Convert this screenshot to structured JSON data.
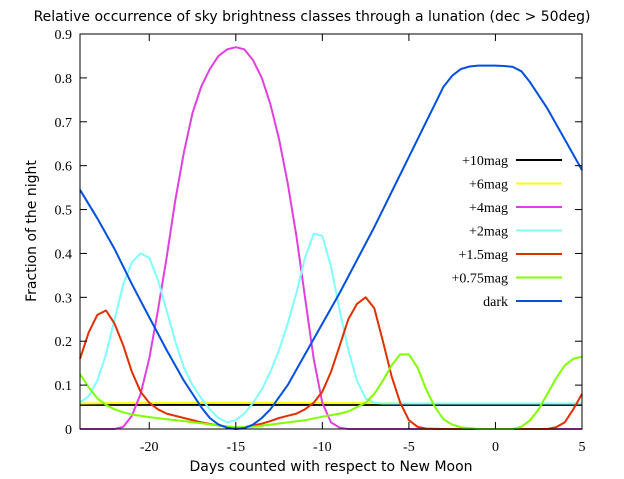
{
  "chart_data": {
    "type": "line",
    "title": "Relative occurrence of sky brightness classes through a lunation (dec > 50deg)",
    "xlabel": "Days counted with respect to New Moon",
    "ylabel": "Fraction of the night",
    "xlim": [
      -24,
      5
    ],
    "ylim": [
      0,
      0.9
    ],
    "xticks": [
      -20,
      -15,
      -10,
      -5,
      0,
      5
    ],
    "yticks": [
      0,
      0.1,
      0.2,
      0.3,
      0.4,
      0.5,
      0.6,
      0.7,
      0.8,
      0.9
    ],
    "grid": false,
    "legend_position": "right",
    "series": [
      {
        "name": "+10mag",
        "color": "#000000",
        "x": [
          -24,
          -20,
          -15,
          -10,
          -5,
          0,
          5
        ],
        "y": [
          0.055,
          0.055,
          0.055,
          0.055,
          0.055,
          0.055,
          0.055
        ]
      },
      {
        "name": "+6mag",
        "color": "#ffff00",
        "x": [
          -24,
          -22,
          -20,
          -17,
          -15,
          -13,
          -10,
          -7,
          -5,
          0,
          5
        ],
        "y": [
          0.058,
          0.059,
          0.059,
          0.06,
          0.06,
          0.06,
          0.059,
          0.059,
          0.058,
          0.058,
          0.058
        ]
      },
      {
        "name": "+4mag",
        "color": "#e040e0",
        "x": [
          -24,
          -22,
          -21.5,
          -21,
          -20.5,
          -20,
          -19.5,
          -19,
          -18.5,
          -18,
          -17.5,
          -17,
          -16.5,
          -16,
          -15.5,
          -15,
          -14.5,
          -14,
          -13.5,
          -13,
          -12.5,
          -12,
          -11.5,
          -11,
          -10.5,
          -10,
          -9.5,
          -9,
          -8.5,
          -8,
          0,
          5
        ],
        "y": [
          0,
          0,
          0.005,
          0.03,
          0.08,
          0.16,
          0.27,
          0.39,
          0.52,
          0.63,
          0.72,
          0.78,
          0.82,
          0.85,
          0.865,
          0.87,
          0.865,
          0.84,
          0.8,
          0.74,
          0.66,
          0.56,
          0.44,
          0.3,
          0.16,
          0.06,
          0.015,
          0.003,
          0,
          0,
          0,
          0
        ]
      },
      {
        "name": "+2mag",
        "color": "#80ffff",
        "x": [
          -24,
          -23.5,
          -23,
          -22.5,
          -22,
          -21.5,
          -21,
          -20.5,
          -20,
          -19.5,
          -19,
          -18.5,
          -18,
          -17.5,
          -17,
          -16.5,
          -16,
          -15.5,
          -15,
          -14.5,
          -14,
          -13.5,
          -13,
          -12.5,
          -12,
          -11.5,
          -11,
          -10.5,
          -10,
          -9.5,
          -9,
          -8.5,
          -8,
          -7.5,
          -7,
          -6.5,
          -6,
          0,
          5
        ],
        "y": [
          0.06,
          0.075,
          0.11,
          0.17,
          0.25,
          0.33,
          0.38,
          0.4,
          0.39,
          0.34,
          0.27,
          0.2,
          0.14,
          0.1,
          0.07,
          0.045,
          0.025,
          0.015,
          0.02,
          0.035,
          0.06,
          0.09,
          0.13,
          0.18,
          0.24,
          0.31,
          0.39,
          0.445,
          0.44,
          0.37,
          0.27,
          0.18,
          0.11,
          0.07,
          0.06,
          0.058,
          0.058,
          0.058,
          0.058
        ]
      },
      {
        "name": "+1.5mag",
        "color": "#e03000",
        "x": [
          -24,
          -23.5,
          -23,
          -22.5,
          -22,
          -21.5,
          -21,
          -20.5,
          -20,
          -19.5,
          -19,
          -18,
          -17,
          -16,
          -15,
          -14.5,
          -14,
          -13.5,
          -13,
          -12.5,
          -12,
          -11.5,
          -11,
          -10.5,
          -10,
          -9.5,
          -9,
          -8.5,
          -8,
          -7.5,
          -7,
          -6.5,
          -6,
          -5.5,
          -5,
          -4.5,
          -4,
          -3,
          3,
          3.5,
          4,
          4.5,
          5
        ],
        "y": [
          0.16,
          0.22,
          0.26,
          0.27,
          0.24,
          0.19,
          0.13,
          0.085,
          0.06,
          0.045,
          0.035,
          0.025,
          0.015,
          0.008,
          0.003,
          0.004,
          0.008,
          0.012,
          0.018,
          0.025,
          0.03,
          0.035,
          0.045,
          0.06,
          0.085,
          0.13,
          0.19,
          0.25,
          0.285,
          0.3,
          0.275,
          0.2,
          0.12,
          0.06,
          0.02,
          0.005,
          0.001,
          0,
          0,
          0.004,
          0.015,
          0.045,
          0.08
        ]
      },
      {
        "name": "+0.75mag",
        "color": "#80ff00",
        "x": [
          -24,
          -23.5,
          -23,
          -22.5,
          -22,
          -21.5,
          -21,
          -20,
          -19,
          -18,
          -17,
          -16,
          -15,
          -14,
          -13,
          -12,
          -11,
          -10,
          -9,
          -8.5,
          -8,
          -7.5,
          -7,
          -6.5,
          -6,
          -5.5,
          -5,
          -4.5,
          -4,
          -3.5,
          -3,
          -2.5,
          -2,
          -1,
          0,
          1,
          1.5,
          2,
          2.5,
          3,
          3.5,
          4,
          4.5,
          5
        ],
        "y": [
          0.125,
          0.095,
          0.07,
          0.055,
          0.045,
          0.038,
          0.033,
          0.027,
          0.022,
          0.018,
          0.013,
          0.008,
          0.004,
          0.005,
          0.01,
          0.015,
          0.02,
          0.028,
          0.035,
          0.04,
          0.05,
          0.06,
          0.08,
          0.11,
          0.145,
          0.17,
          0.17,
          0.14,
          0.09,
          0.05,
          0.022,
          0.01,
          0.004,
          0,
          0,
          0,
          0.005,
          0.02,
          0.045,
          0.08,
          0.115,
          0.145,
          0.16,
          0.165
        ]
      },
      {
        "name": "dark",
        "color": "#0050e0",
        "x": [
          -24,
          -23,
          -22,
          -21,
          -20,
          -19,
          -18,
          -17,
          -16.5,
          -16,
          -15.5,
          -15,
          -14.5,
          -14,
          -13.5,
          -13,
          -12,
          -11,
          -10,
          -9,
          -8,
          -7,
          -6,
          -5,
          -4,
          -3.5,
          -3,
          -2.5,
          -2,
          -1.5,
          -1,
          -0.5,
          0,
          0.5,
          1,
          1.5,
          2,
          3,
          4,
          5
        ],
        "y": [
          0.545,
          0.48,
          0.41,
          0.33,
          0.255,
          0.18,
          0.11,
          0.05,
          0.025,
          0.01,
          0.003,
          0,
          0.002,
          0.01,
          0.025,
          0.045,
          0.1,
          0.17,
          0.24,
          0.31,
          0.385,
          0.46,
          0.54,
          0.62,
          0.7,
          0.74,
          0.78,
          0.805,
          0.82,
          0.826,
          0.828,
          0.828,
          0.828,
          0.827,
          0.825,
          0.815,
          0.79,
          0.73,
          0.66,
          0.59
        ]
      }
    ]
  }
}
